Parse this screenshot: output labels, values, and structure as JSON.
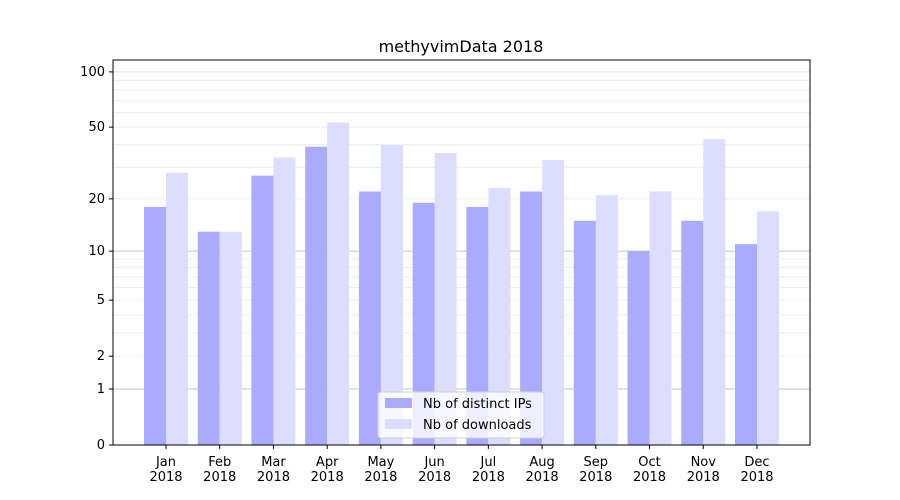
{
  "chart_data": {
    "type": "bar",
    "title": "methyvimData 2018",
    "xlabel": "",
    "ylabel": "",
    "yscale": "log(1+y)",
    "ylim": [
      0,
      116
    ],
    "yticks": [
      0,
      1,
      2,
      5,
      10,
      20,
      50,
      100
    ],
    "grid": true,
    "legend_position": "bottom-center",
    "categories": [
      "Jan\n2018",
      "Feb\n2018",
      "Mar\n2018",
      "Apr\n2018",
      "May\n2018",
      "Jun\n2018",
      "Jul\n2018",
      "Aug\n2018",
      "Sep\n2018",
      "Oct\n2018",
      "Nov\n2018",
      "Dec\n2018"
    ],
    "series": [
      {
        "name": "Nb of distinct IPs",
        "color": "#aaaaff",
        "values": [
          18,
          13,
          27,
          39,
          22,
          19,
          18,
          22,
          15,
          10,
          15,
          11
        ]
      },
      {
        "name": "Nb of downloads",
        "color": "#ddddff",
        "values": [
          28,
          13,
          34,
          53,
          40,
          36,
          23,
          33,
          21,
          22,
          43,
          17
        ]
      }
    ]
  }
}
